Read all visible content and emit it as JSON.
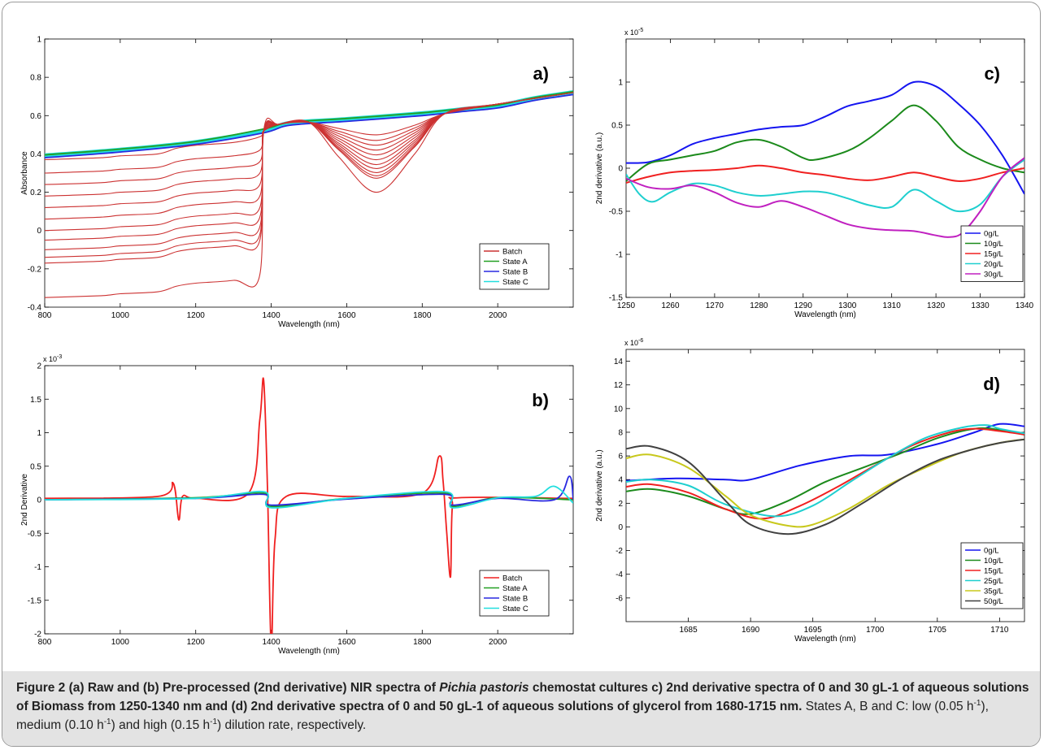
{
  "colors": {
    "blue": "#1515f0",
    "green": "#1b8a1b",
    "red": "#f02020",
    "cyan": "#1fcfcf",
    "magenta": "#c020c0",
    "olive": "#c8c81c",
    "dark": "#404040",
    "batch": "#cc3232",
    "stateA": "#22a022",
    "stateB": "#2a2ae0",
    "stateC": "#22dede"
  },
  "caption": {
    "label": "Figure 2",
    "bold1": "(a) Raw and (b) Pre-processed (2nd derivative) NIR spectra of",
    "species": "Pichia pastoris",
    "bold2": "chemostat cultures c) 2nd derivative spectra of 0 and 30 gL-1 of aqueous solutions of Biomass from 1250-1340 nm and (d) 2nd derivative spectra of 0 and 50 gL-1 of aqueous solutions of glycerol from 1680-1715 nm.",
    "t1": "States A, B and C: low (0.05 h",
    "t2": "), medium (0.10 h",
    "t3": ") and high (0.15 h",
    "t4": ") dilution rate, respectively.",
    "sup": "-1"
  },
  "chart_data": [
    {
      "id": "a",
      "panel_label": "a)",
      "type": "line",
      "xlabel": "Wavelength (nm)",
      "ylabel": "Absorbance",
      "xlim": [
        800,
        2200
      ],
      "ylim": [
        -0.4,
        1
      ],
      "xticks": [
        800,
        1000,
        1200,
        1400,
        1600,
        1800,
        2000
      ],
      "yticks": [
        -0.4,
        -0.2,
        0,
        0.2,
        0.4,
        0.6,
        0.8,
        1
      ],
      "ytick_labels": [
        "-0.4",
        "-0.2",
        "0",
        "0.2",
        "0.4",
        "0.6",
        "0.8",
        "1"
      ],
      "legend": [
        "Batch",
        "State A",
        "State B",
        "State C"
      ],
      "legend_colors": [
        "batch",
        "stateA",
        "stateB",
        "stateC"
      ],
      "legend_position": "bottom-right",
      "series": [
        {
          "name": "State C",
          "color": "stateC",
          "x": [
            800,
            1000,
            1200,
            1380,
            1450,
            1600,
            1800,
            1900,
            2000,
            2100,
            2200
          ],
          "y": [
            0.39,
            0.42,
            0.46,
            0.52,
            0.56,
            0.58,
            0.61,
            0.63,
            0.65,
            0.69,
            0.72
          ],
          "band": 0.03
        },
        {
          "name": "State B",
          "color": "stateB",
          "x": [
            800,
            1000,
            1200,
            1380,
            1450,
            1600,
            1800,
            1900,
            2000,
            2100,
            2200
          ],
          "y": [
            0.38,
            0.41,
            0.45,
            0.51,
            0.55,
            0.57,
            0.6,
            0.62,
            0.64,
            0.68,
            0.71
          ]
        },
        {
          "name": "State A",
          "color": "stateA",
          "x": [
            800,
            1000,
            1200,
            1380,
            1450,
            1600,
            1800,
            1900,
            2000,
            2100,
            2200
          ],
          "y": [
            0.395,
            0.425,
            0.465,
            0.53,
            0.565,
            0.585,
            0.615,
            0.635,
            0.655,
            0.695,
            0.725
          ]
        },
        {
          "name": "Batch",
          "color": "batch",
          "family": "batch",
          "bases": [
            0.37,
            0.3,
            0.24,
            0.18,
            0.12,
            0.06,
            0.0,
            -0.05,
            -0.1,
            -0.14,
            -0.17,
            -0.35
          ]
        }
      ]
    },
    {
      "id": "b",
      "panel_label": "b)",
      "type": "line",
      "xlabel": "Wavelength (nm)",
      "ylabel": "2nd Derivative",
      "xlim": [
        800,
        2200
      ],
      "ylim": [
        -2,
        2
      ],
      "xticks": [
        800,
        1000,
        1200,
        1400,
        1600,
        1800,
        2000
      ],
      "yticks": [
        -2,
        -1.5,
        -1,
        -0.5,
        0,
        0.5,
        1,
        1.5,
        2
      ],
      "ytick_labels": [
        "-2",
        "-1.5",
        "-1",
        "-0.5",
        "0",
        "0.5",
        "1",
        "1.5",
        "2"
      ],
      "scale_label": "x 10",
      "scale_exp": "-3",
      "legend": [
        "Batch",
        "State A",
        "State B",
        "State C"
      ],
      "legend_colors": [
        "red",
        "stateA",
        "stateB",
        "stateC"
      ],
      "legend_position": "bottom-right",
      "series": [
        {
          "name": "Batch",
          "color": "red",
          "x": [
            800,
            1100,
            1140,
            1155,
            1165,
            1200,
            1340,
            1370,
            1380,
            1390,
            1400,
            1410,
            1440,
            1600,
            1800,
            1845,
            1855,
            1865,
            1875,
            1880,
            1900,
            2200
          ],
          "y": [
            0.02,
            0.05,
            0.25,
            -0.3,
            0.05,
            0.02,
            0.1,
            1.2,
            1.78,
            0.2,
            -2.2,
            -0.6,
            0.05,
            0.05,
            0.1,
            0.65,
            0.3,
            -0.5,
            -1.15,
            -0.1,
            0.03,
            0.02
          ]
        },
        {
          "name": "State A",
          "color": "stateA",
          "x": [
            800,
            1200,
            1380,
            1400,
            1600,
            1860,
            1880,
            2000,
            2200
          ],
          "y": [
            0.0,
            0.03,
            0.1,
            -0.1,
            0.02,
            0.1,
            -0.1,
            0.03,
            0.0
          ]
        },
        {
          "name": "State B",
          "color": "stateB",
          "x": [
            800,
            1200,
            1380,
            1400,
            1600,
            1860,
            1880,
            2000,
            2150,
            2190,
            2200
          ],
          "y": [
            0.0,
            0.02,
            0.08,
            -0.08,
            0.01,
            0.08,
            -0.08,
            0.02,
            0.0,
            0.35,
            0.0
          ]
        },
        {
          "name": "State C",
          "color": "stateC",
          "x": [
            800,
            1200,
            1380,
            1400,
            1600,
            1860,
            1880,
            2000,
            2100,
            2150,
            2200
          ],
          "y": [
            0.0,
            0.02,
            0.12,
            -0.12,
            0.02,
            0.12,
            -0.12,
            0.03,
            0.05,
            0.2,
            -0.05
          ]
        }
      ]
    },
    {
      "id": "c",
      "panel_label": "c)",
      "type": "line",
      "xlabel": "Wavelength (nm)",
      "ylabel": "2nd derivative (a.u.)",
      "xlim": [
        1250,
        1340
      ],
      "ylim": [
        -1.5,
        1.5
      ],
      "xticks": [
        1250,
        1260,
        1270,
        1280,
        1290,
        1300,
        1310,
        1320,
        1330,
        1340
      ],
      "yticks": [
        -1.5,
        -1,
        -0.5,
        0,
        0.5,
        1
      ],
      "ytick_labels": [
        "-1.5",
        "-1",
        "-0.5",
        "0",
        "0.5",
        "1"
      ],
      "scale_label": "x 10",
      "scale_exp": "-5",
      "legend": [
        "0g/L",
        "10g/L",
        "15g/L",
        "20g/L",
        "30g/L"
      ],
      "legend_colors": [
        "blue",
        "green",
        "red",
        "cyan",
        "magenta"
      ],
      "legend_position": "bottom-right",
      "series": [
        {
          "name": "0g/L",
          "color": "blue",
          "x": [
            1250,
            1255,
            1260,
            1265,
            1270,
            1275,
            1280,
            1285,
            1290,
            1295,
            1300,
            1305,
            1310,
            1315,
            1320,
            1325,
            1330,
            1335,
            1340
          ],
          "y": [
            0.06,
            0.07,
            0.15,
            0.28,
            0.35,
            0.4,
            0.45,
            0.48,
            0.5,
            0.6,
            0.72,
            0.78,
            0.85,
            1.0,
            0.95,
            0.75,
            0.5,
            0.15,
            -0.3
          ]
        },
        {
          "name": "10g/L",
          "color": "green",
          "x": [
            1250,
            1255,
            1260,
            1265,
            1270,
            1275,
            1280,
            1285,
            1290,
            1293,
            1300,
            1305,
            1310,
            1315,
            1320,
            1325,
            1330,
            1335,
            1340
          ],
          "y": [
            -0.15,
            0.05,
            0.1,
            0.15,
            0.2,
            0.3,
            0.33,
            0.25,
            0.12,
            0.1,
            0.2,
            0.35,
            0.55,
            0.73,
            0.55,
            0.25,
            0.1,
            0.0,
            -0.05
          ]
        },
        {
          "name": "15g/L",
          "color": "red",
          "x": [
            1250,
            1255,
            1260,
            1265,
            1270,
            1275,
            1280,
            1285,
            1290,
            1295,
            1300,
            1305,
            1310,
            1315,
            1320,
            1325,
            1330,
            1335,
            1340
          ],
          "y": [
            -0.17,
            -0.1,
            -0.05,
            -0.03,
            -0.02,
            0.0,
            0.03,
            0.0,
            -0.05,
            -0.08,
            -0.12,
            -0.14,
            -0.1,
            -0.05,
            -0.1,
            -0.15,
            -0.12,
            -0.05,
            0.0
          ]
        },
        {
          "name": "20g/L",
          "color": "cyan",
          "x": [
            1250,
            1253,
            1256,
            1260,
            1265,
            1270,
            1275,
            1280,
            1285,
            1290,
            1295,
            1300,
            1305,
            1310,
            1315,
            1320,
            1325,
            1330,
            1335,
            1340
          ],
          "y": [
            -0.07,
            -0.3,
            -0.39,
            -0.28,
            -0.18,
            -0.2,
            -0.28,
            -0.32,
            -0.3,
            -0.27,
            -0.28,
            -0.35,
            -0.43,
            -0.45,
            -0.25,
            -0.38,
            -0.5,
            -0.42,
            -0.1,
            0.1
          ]
        },
        {
          "name": "30g/L",
          "color": "magenta",
          "x": [
            1250,
            1255,
            1260,
            1265,
            1270,
            1275,
            1280,
            1285,
            1290,
            1295,
            1300,
            1305,
            1310,
            1315,
            1320,
            1323,
            1326,
            1330,
            1335,
            1340
          ],
          "y": [
            -0.12,
            -0.22,
            -0.24,
            -0.2,
            -0.28,
            -0.4,
            -0.45,
            -0.38,
            -0.45,
            -0.55,
            -0.65,
            -0.7,
            -0.72,
            -0.73,
            -0.78,
            -0.8,
            -0.75,
            -0.5,
            -0.1,
            0.12
          ]
        }
      ]
    },
    {
      "id": "d",
      "panel_label": "d)",
      "type": "line",
      "xlabel": "Wavelength (nm)",
      "ylabel": "2nd derivative (a.u.)",
      "xlim": [
        1680,
        1712
      ],
      "ylim": [
        -8,
        15
      ],
      "xticks": [
        1685,
        1690,
        1695,
        1700,
        1705,
        1710
      ],
      "yticks": [
        -6,
        -4,
        -2,
        0,
        2,
        4,
        6,
        8,
        10,
        12,
        14
      ],
      "ytick_labels": [
        "-6",
        "-4",
        "-2",
        "0",
        "2",
        "4",
        "6",
        "8",
        "10",
        "12",
        "14"
      ],
      "scale_label": "x 10",
      "scale_exp": "-6",
      "legend": [
        "0g/L",
        "10g/L",
        "15g/L",
        "25g/L",
        "35g/L",
        "50g/L"
      ],
      "legend_colors": [
        "blue",
        "green",
        "red",
        "cyan",
        "olive",
        "dark"
      ],
      "legend_position": "bottom-right",
      "series": [
        {
          "name": "0g/L",
          "color": "blue",
          "x": [
            1680,
            1684,
            1688,
            1690,
            1694,
            1698,
            1701,
            1705,
            1708,
            1710,
            1712
          ],
          "y": [
            3.9,
            4.1,
            4.0,
            4.0,
            5.2,
            6.0,
            6.1,
            7.0,
            8.0,
            8.7,
            8.5
          ]
        },
        {
          "name": "10g/L",
          "color": "green",
          "x": [
            1680,
            1682,
            1685,
            1688,
            1690,
            1693,
            1696,
            1699,
            1702,
            1705,
            1708,
            1710,
            1712
          ],
          "y": [
            3.0,
            3.2,
            2.6,
            1.5,
            1.1,
            2.2,
            3.8,
            5.0,
            6.2,
            7.5,
            8.3,
            8.2,
            7.8
          ]
        },
        {
          "name": "15g/L",
          "color": "red",
          "x": [
            1680,
            1682,
            1685,
            1688,
            1691,
            1694,
            1697,
            1700,
            1703,
            1706,
            1708,
            1710,
            1712
          ],
          "y": [
            3.4,
            3.6,
            2.9,
            1.5,
            0.7,
            1.8,
            3.4,
            5.2,
            6.9,
            8.0,
            8.3,
            8.1,
            7.8
          ]
        },
        {
          "name": "25g/L",
          "color": "cyan",
          "x": [
            1680,
            1682,
            1685,
            1688,
            1692,
            1695,
            1698,
            1701,
            1704,
            1707,
            1709,
            1710,
            1712
          ],
          "y": [
            3.8,
            4.0,
            3.5,
            1.9,
            0.9,
            1.8,
            3.8,
            5.8,
            7.5,
            8.4,
            8.6,
            8.3,
            7.9
          ]
        },
        {
          "name": "35g/L",
          "color": "olive",
          "x": [
            1680,
            1682,
            1685,
            1688,
            1690,
            1693,
            1695,
            1698,
            1701,
            1704,
            1707,
            1710,
            1712
          ],
          "y": [
            5.8,
            6.1,
            5.0,
            2.6,
            1.0,
            0.1,
            0.2,
            1.6,
            3.5,
            5.0,
            6.3,
            7.1,
            7.4
          ]
        },
        {
          "name": "50g/L",
          "color": "dark",
          "x": [
            1680,
            1682,
            1685,
            1688,
            1690,
            1693,
            1696,
            1699,
            1702,
            1705,
            1708,
            1710,
            1712
          ],
          "y": [
            6.6,
            6.8,
            5.5,
            2.2,
            0.2,
            -0.6,
            0.2,
            2.0,
            4.0,
            5.6,
            6.6,
            7.1,
            7.4
          ]
        }
      ]
    }
  ]
}
